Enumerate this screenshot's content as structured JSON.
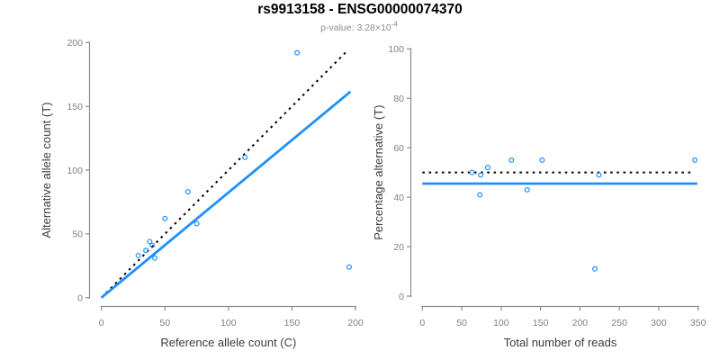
{
  "header": {
    "title": "rs9913158 - ENSG00000074370",
    "subtitle_main": "p-value: 3.28×10",
    "subtitle_exponent": "-4"
  },
  "colors": {
    "accent_blue": "#1E90FF",
    "dotted_black": "#000000",
    "axis_line": "#8C8C8C",
    "tick_text": "#7F7F7F",
    "axis_title_text": "#3C3C3C",
    "title_text": "#000000",
    "subtitle_text": "#8C8C8C",
    "background": "#FFFFFF"
  },
  "chart_data": [
    {
      "type": "scatter",
      "panel": "left",
      "xlabel": "Reference allele count (C)",
      "ylabel": "Alternative allele count (T)",
      "xlim": [
        0,
        200
      ],
      "ylim": [
        0,
        200
      ],
      "xticks": [
        0,
        50,
        100,
        150,
        200
      ],
      "yticks": [
        0,
        50,
        100,
        150,
        200
      ],
      "grid": false,
      "legend": null,
      "point_color": "#1E90FF",
      "points": [
        [
          154,
          192
        ],
        [
          195,
          24
        ],
        [
          113,
          110
        ],
        [
          68,
          83
        ],
        [
          75,
          58
        ],
        [
          50,
          62
        ],
        [
          42,
          31
        ],
        [
          40,
          41
        ],
        [
          38,
          44
        ],
        [
          35,
          37
        ],
        [
          29,
          33
        ]
      ],
      "lines": [
        {
          "name": "identity-line",
          "style": "dotted",
          "color": "#000000",
          "x1": 0,
          "y1": 0,
          "x2": 194,
          "y2": 194
        },
        {
          "name": "regression-line",
          "style": "solid",
          "color": "#1E90FF",
          "x1": 0,
          "y1": 0,
          "x2": 196,
          "y2": 161.5
        }
      ]
    },
    {
      "type": "scatter",
      "panel": "right",
      "xlabel": "Total number of reads",
      "ylabel": "Percentage alternative (T)",
      "xlim": [
        0,
        350
      ],
      "ylim": [
        0,
        100
      ],
      "xticks": [
        0,
        50,
        100,
        150,
        200,
        250,
        300,
        350
      ],
      "yticks": [
        0,
        20,
        40,
        60,
        80,
        100
      ],
      "grid": false,
      "legend": null,
      "point_color": "#1E90FF",
      "points": [
        [
          63,
          50
        ],
        [
          73,
          41
        ],
        [
          74,
          49
        ],
        [
          83,
          52
        ],
        [
          113,
          55
        ],
        [
          133,
          43
        ],
        [
          152,
          55
        ],
        [
          219,
          11
        ],
        [
          224,
          49
        ],
        [
          346,
          55
        ]
      ],
      "lines": [
        {
          "name": "expected-50pct-line",
          "style": "dotted",
          "color": "#000000",
          "x1": 0,
          "y1": 50,
          "x2": 341,
          "y2": 50
        },
        {
          "name": "fitted-mean-line",
          "style": "solid",
          "color": "#1E90FF",
          "x1": 0,
          "y1": 45.5,
          "x2": 349,
          "y2": 45.5
        }
      ]
    }
  ]
}
